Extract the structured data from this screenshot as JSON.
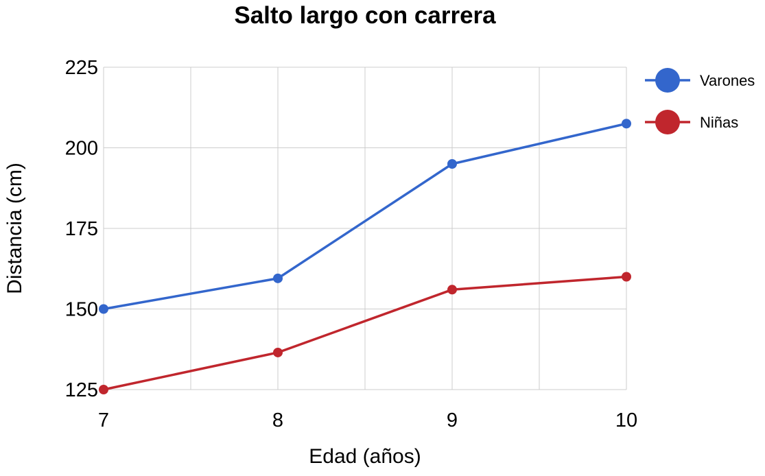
{
  "chart_data": {
    "type": "line",
    "title": "Salto largo con carrera",
    "xlabel": "Edad (años)",
    "ylabel": "Distancia (cm)",
    "x": [
      7,
      8,
      9,
      10
    ],
    "x_tick_labels": [
      "7",
      "8",
      "9",
      "10"
    ],
    "xlim": [
      7,
      10
    ],
    "ylim": [
      125,
      225
    ],
    "y_ticks": [
      125,
      150,
      175,
      200,
      225
    ],
    "y_tick_labels": [
      "125",
      "150",
      "175",
      "200",
      "225"
    ],
    "grid": true,
    "legend": "right",
    "series": [
      {
        "name": "Varones",
        "color": "#3366cc",
        "values": [
          150,
          159.5,
          195,
          207.5
        ]
      },
      {
        "name": "Niñas",
        "color": "#c0262d",
        "values": [
          125,
          136.5,
          156,
          160
        ]
      }
    ]
  }
}
